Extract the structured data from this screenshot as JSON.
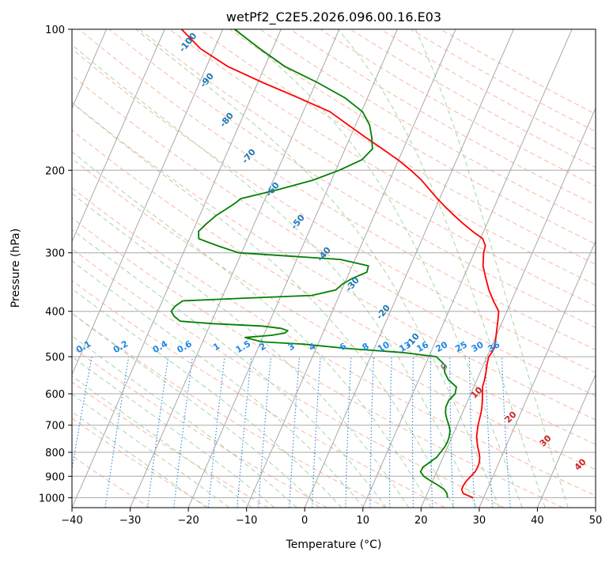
{
  "chart_data": {
    "type": "skew-t",
    "title": "wetPf2_C2E5.2026.096.00.16.E03",
    "xlabel": "Temperature (°C)",
    "ylabel": "Pressure (hPa)",
    "xlim": [
      -40,
      50
    ],
    "ylim": [
      1050,
      100
    ],
    "y_scale": "log",
    "grid": true,
    "x_ticks": [
      -40,
      -30,
      -20,
      -10,
      0,
      10,
      20,
      30,
      40,
      50
    ],
    "y_ticks": [
      100,
      200,
      300,
      400,
      500,
      600,
      700,
      800,
      900,
      1000
    ],
    "colors": {
      "temperature": "#ff0000",
      "dewpoint": "#008000",
      "isotherm": "#a8a8a8",
      "dry_adiabat": "#f7a58a",
      "moist_adiabat": "#9fd09f",
      "mixing_ratio": "#1e88e5",
      "dry_label": "#cc2222",
      "moist_label": "#1f77b4"
    },
    "series": [
      {
        "name": "",
        "role": "temperature",
        "points": [
          [
            1000,
            28.2
          ],
          [
            980,
            26.2
          ],
          [
            960,
            25.6
          ],
          [
            940,
            25.6
          ],
          [
            920,
            25.8
          ],
          [
            900,
            26.2
          ],
          [
            880,
            26.6
          ],
          [
            860,
            26.7
          ],
          [
            840,
            26.6
          ],
          [
            820,
            26.3
          ],
          [
            800,
            25.8
          ],
          [
            780,
            25.2
          ],
          [
            760,
            24.7
          ],
          [
            740,
            24.2
          ],
          [
            720,
            23.9
          ],
          [
            700,
            23.6
          ],
          [
            680,
            23.4
          ],
          [
            660,
            23.2
          ],
          [
            640,
            22.9
          ],
          [
            620,
            22.5
          ],
          [
            600,
            22.0
          ],
          [
            580,
            21.5
          ],
          [
            560,
            21.3
          ],
          [
            540,
            21.0
          ],
          [
            520,
            20.6
          ],
          [
            500,
            20.3
          ],
          [
            490,
            20.5
          ],
          [
            480,
            20.6
          ],
          [
            460,
            20.2
          ],
          [
            440,
            19.7
          ],
          [
            420,
            19.2
          ],
          [
            400,
            18.6
          ],
          [
            380,
            16.9
          ],
          [
            360,
            15.3
          ],
          [
            340,
            13.9
          ],
          [
            320,
            12.5
          ],
          [
            300,
            11.6
          ],
          [
            290,
            11.4
          ],
          [
            280,
            10.4
          ],
          [
            270,
            8.1
          ],
          [
            260,
            5.9
          ],
          [
            250,
            3.8
          ],
          [
            240,
            1.7
          ],
          [
            230,
            -0.4
          ],
          [
            220,
            -2.4
          ],
          [
            210,
            -4.5
          ],
          [
            200,
            -7.1
          ],
          [
            190,
            -10.1
          ],
          [
            180,
            -13.6
          ],
          [
            170,
            -17.4
          ],
          [
            160,
            -21.3
          ],
          [
            150,
            -25.4
          ],
          [
            140,
            -31.9
          ],
          [
            130,
            -39.1
          ],
          [
            120,
            -46.4
          ],
          [
            110,
            -52.4
          ],
          [
            100,
            -57.1
          ]
        ]
      },
      {
        "name": "",
        "role": "dewpoint",
        "points": [
          [
            1000,
            23.8
          ],
          [
            980,
            23.4
          ],
          [
            960,
            22.6
          ],
          [
            940,
            21.2
          ],
          [
            920,
            19.6
          ],
          [
            900,
            18.1
          ],
          [
            880,
            17.2
          ],
          [
            860,
            17.3
          ],
          [
            840,
            18.1
          ],
          [
            820,
            18.9
          ],
          [
            800,
            19.2
          ],
          [
            780,
            19.5
          ],
          [
            760,
            19.6
          ],
          [
            740,
            19.5
          ],
          [
            720,
            19.2
          ],
          [
            700,
            18.6
          ],
          [
            680,
            17.8
          ],
          [
            660,
            17.1
          ],
          [
            640,
            16.7
          ],
          [
            620,
            16.7
          ],
          [
            600,
            17.3
          ],
          [
            580,
            17.0
          ],
          [
            560,
            15.1
          ],
          [
            540,
            13.9
          ],
          [
            520,
            13.3
          ],
          [
            500,
            11.3
          ],
          [
            490,
            5.3
          ],
          [
            480,
            -4.8
          ],
          [
            470,
            -12.5
          ],
          [
            465,
            -19.7
          ],
          [
            460,
            -21.4
          ],
          [
            455,
            -23.0
          ],
          [
            450,
            -18.6
          ],
          [
            445,
            -16.5
          ],
          [
            440,
            -16.2
          ],
          [
            435,
            -17.5
          ],
          [
            430,
            -21.0
          ],
          [
            425,
            -29.6
          ],
          [
            420,
            -35.4
          ],
          [
            410,
            -36.8
          ],
          [
            400,
            -37.7
          ],
          [
            390,
            -37.4
          ],
          [
            380,
            -36.5
          ],
          [
            375,
            -26.2
          ],
          [
            370,
            -14.7
          ],
          [
            360,
            -11.0
          ],
          [
            350,
            -10.3
          ],
          [
            340,
            -9.0
          ],
          [
            330,
            -7.0
          ],
          [
            320,
            -7.2
          ],
          [
            310,
            -12.5
          ],
          [
            300,
            -30.5
          ],
          [
            290,
            -34.6
          ],
          [
            280,
            -38.4
          ],
          [
            270,
            -39.0
          ],
          [
            260,
            -38.2
          ],
          [
            250,
            -37.2
          ],
          [
            240,
            -35.6
          ],
          [
            235,
            -34.8
          ],
          [
            230,
            -34.2
          ],
          [
            220,
            -28.5
          ],
          [
            210,
            -23.2
          ],
          [
            200,
            -19.4
          ],
          [
            190,
            -16.3
          ],
          [
            180,
            -15.3
          ],
          [
            170,
            -16.3
          ],
          [
            160,
            -17.6
          ],
          [
            150,
            -19.8
          ],
          [
            140,
            -23.9
          ],
          [
            130,
            -29.7
          ],
          [
            120,
            -36.6
          ],
          [
            110,
            -42.2
          ],
          [
            100,
            -48.0
          ]
        ]
      }
    ],
    "moist_labels": [
      "-100",
      "-90",
      "-80",
      "-70",
      "-60",
      "-50",
      "-40",
      "-30",
      "-20",
      "-10",
      "0"
    ],
    "dry_labels": [
      "10",
      "20",
      "30",
      "40"
    ],
    "mixing_labels": [
      "0.1",
      "0.2",
      "0.4",
      "0.6",
      "1",
      "1.5",
      "2",
      "3",
      "4",
      "6",
      "8",
      "10",
      "13",
      "16",
      "20",
      "25",
      "30",
      "36"
    ],
    "mixing_values": [
      0.1,
      0.2,
      0.4,
      0.6,
      1,
      1.5,
      2,
      3,
      4,
      6,
      8,
      10,
      13,
      16,
      20,
      25,
      30,
      36
    ]
  }
}
